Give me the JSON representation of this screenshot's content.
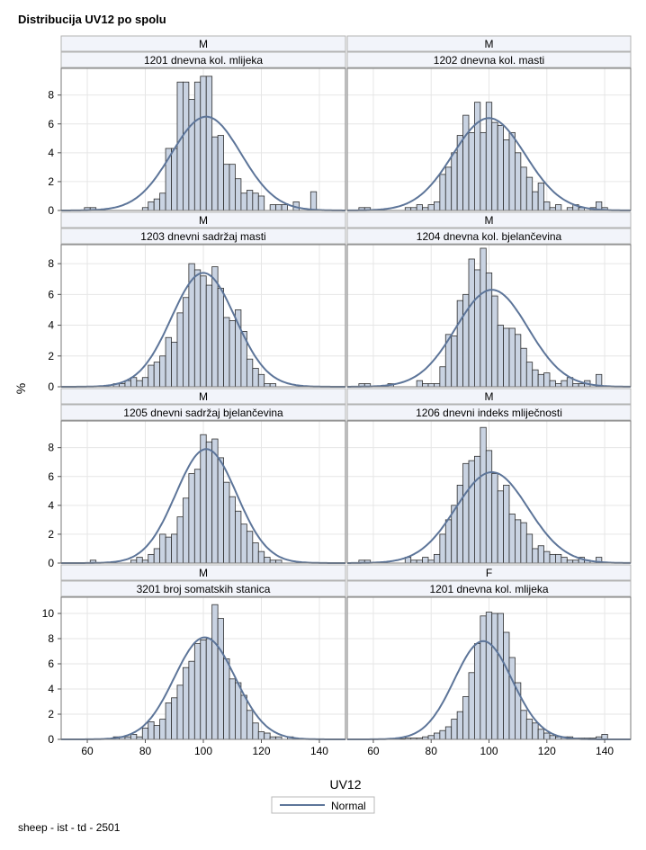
{
  "title": "Distribucija UV12 po spolu",
  "footnote": "sheep - ist - td - 2501",
  "legend_label": "Normal",
  "colors": {
    "bar_fill": "#c9d3e2",
    "bar_stroke": "#2e2e2e",
    "curve": "#5d7599",
    "header_fill": "#f2f4fa",
    "grid": "#e6e6e6"
  },
  "chart_data": {
    "type": "bar",
    "xlabel": "UV12",
    "ylabel": "%",
    "xlim": [
      51,
      149
    ],
    "xticks": [
      60,
      80,
      100,
      120,
      140
    ],
    "bin_start": 56,
    "bin_width": 2,
    "legend": "bottom-center",
    "panels": [
      {
        "sex": "M",
        "trait": "1201 dnevna kol. mlijeka",
        "ylim": [
          0,
          9.6
        ],
        "yticks": [
          0,
          2,
          4,
          6,
          8
        ],
        "mean": 101,
        "sd": 12,
        "curve_peak": 6.5,
        "values": [
          0,
          0,
          0.2,
          0.2,
          0,
          0,
          0,
          0,
          0,
          0,
          0,
          0,
          0.2,
          0.6,
          0.8,
          1.2,
          4.3,
          4.3,
          8.9,
          8.9,
          7.7,
          8.9,
          9.3,
          9.3,
          5.1,
          5.2,
          3.2,
          3.2,
          2.2,
          1.2,
          1.4,
          1.2,
          1.0,
          0,
          0.4,
          0.4,
          0.4,
          0,
          0.6,
          0,
          0,
          1.3
        ]
      },
      {
        "sex": "M",
        "trait": "1202 dnevna kol. masti",
        "ylim": [
          0,
          9.6
        ],
        "yticks": [
          0,
          2,
          4,
          6,
          8
        ],
        "mean": 100,
        "sd": 12.5,
        "curve_peak": 6.4,
        "values": [
          0.2,
          0.2,
          0,
          0,
          0,
          0,
          0,
          0,
          0.2,
          0.2,
          0.4,
          0.2,
          0.4,
          0.6,
          2.5,
          3.0,
          4.0,
          5.2,
          6.6,
          5.4,
          7.5,
          5.4,
          7.5,
          6.1,
          5.9,
          4.9,
          5.4,
          4.0,
          3.0,
          2.3,
          1.3,
          1.9,
          0.6,
          0.2,
          0.4,
          0,
          0.2,
          0.4,
          0.2,
          0,
          0.2,
          0.6,
          0.2
        ]
      },
      {
        "sex": "M",
        "trait": "1203 dnevni sadržaj masti",
        "ylim": [
          0,
          9.0
        ],
        "yticks": [
          0,
          2,
          4,
          6,
          8
        ],
        "mean": 100,
        "sd": 11,
        "curve_peak": 7.4,
        "values": [
          0,
          0,
          0,
          0,
          0,
          0,
          0,
          0.2,
          0.2,
          0.4,
          0.6,
          0.4,
          0.6,
          1.4,
          1.6,
          2.0,
          3.2,
          2.9,
          4.8,
          5.8,
          8.0,
          7.6,
          7.2,
          6.6,
          7.8,
          6.4,
          4.5,
          4.3,
          5.0,
          3.6,
          1.8,
          1.2,
          0.8,
          0.2,
          0.2,
          0,
          0,
          0,
          0,
          0,
          0,
          0,
          0
        ]
      },
      {
        "sex": "M",
        "trait": "1204 dnevna kol. bjelančevina",
        "ylim": [
          0,
          9.0
        ],
        "yticks": [
          0,
          2,
          4,
          6,
          8
        ],
        "mean": 101,
        "sd": 12.5,
        "curve_peak": 6.3,
        "values": [
          0.2,
          0.2,
          0,
          0,
          0,
          0.2,
          0,
          0,
          0,
          0,
          0.4,
          0.2,
          0.2,
          0.2,
          1.3,
          3.4,
          3.3,
          5.6,
          6.0,
          8.3,
          7.6,
          9.0,
          7.4,
          5.9,
          4.0,
          3.8,
          3.8,
          3.4,
          2.5,
          1.6,
          1.1,
          0.8,
          0.9,
          0.4,
          0.2,
          0.4,
          0.6,
          0.2,
          0.2,
          0.4,
          0,
          0.8,
          0
        ]
      },
      {
        "sex": "M",
        "trait": "1205 dnevni sadržaj bjelančevina",
        "ylim": [
          0,
          9.6
        ],
        "yticks": [
          0,
          2,
          4,
          6,
          8
        ],
        "mean": 101,
        "sd": 10.5,
        "curve_peak": 7.9,
        "values": [
          0,
          0,
          0,
          0.2,
          0,
          0,
          0,
          0,
          0,
          0,
          0.2,
          0.4,
          0.2,
          0.6,
          1.0,
          2.0,
          1.8,
          2.0,
          3.2,
          4.5,
          6.2,
          6.5,
          8.9,
          8.4,
          8.6,
          7.3,
          5.6,
          4.6,
          3.6,
          2.7,
          2.2,
          1.4,
          0.8,
          0.4,
          0.2,
          0.2,
          0,
          0,
          0,
          0,
          0,
          0,
          0
        ]
      },
      {
        "sex": "M",
        "trait": "1206 dnevni indeks mliječnosti",
        "ylim": [
          0,
          9.6
        ],
        "yticks": [
          0,
          2,
          4,
          6,
          8
        ],
        "mean": 101,
        "sd": 12.5,
        "curve_peak": 6.3,
        "values": [
          0.2,
          0.2,
          0,
          0,
          0,
          0,
          0,
          0,
          0.4,
          0.2,
          0.2,
          0.4,
          0.2,
          0.6,
          2.0,
          3.0,
          4.0,
          5.4,
          6.9,
          7.1,
          7.4,
          9.4,
          7.8,
          6.2,
          5.0,
          5.4,
          3.4,
          3.0,
          2.8,
          2.0,
          1.0,
          1.2,
          0.8,
          0.6,
          0.6,
          0.4,
          0.2,
          0.2,
          0.4,
          0.2,
          0,
          0.4,
          0
        ]
      },
      {
        "sex": "M",
        "trait": "3201 broj somatskih stanica",
        "ylim": [
          0,
          11.0
        ],
        "yticks": [
          0,
          2,
          4,
          6,
          8,
          10
        ],
        "mean": 100.5,
        "sd": 10.5,
        "curve_peak": 8.1,
        "values": [
          0,
          0,
          0,
          0,
          0,
          0,
          0,
          0.2,
          0.2,
          0.2,
          0.4,
          0.2,
          0.9,
          1.4,
          1.1,
          1.6,
          2.9,
          3.3,
          4.3,
          5.7,
          6.2,
          7.6,
          7.9,
          8.0,
          10.7,
          9.6,
          6.4,
          4.8,
          4.5,
          3.5,
          2.3,
          1.3,
          0.6,
          0.5,
          0.2,
          0.2,
          0,
          0.2,
          0,
          0,
          0,
          0,
          0
        ]
      },
      {
        "sex": "F",
        "trait": "1201 dnevna kol. mlijeka",
        "ylim": [
          0,
          11.0
        ],
        "yticks": [
          0,
          2,
          4,
          6,
          8,
          10
        ],
        "mean": 98,
        "sd": 10,
        "curve_peak": 7.8,
        "values": [
          0,
          0,
          0,
          0,
          0,
          0,
          0,
          0.05,
          0.1,
          0.1,
          0.1,
          0.2,
          0.3,
          0.5,
          0.7,
          1.0,
          1.6,
          2.2,
          3.4,
          5.3,
          7.6,
          9.8,
          10.1,
          10.0,
          10.0,
          8.5,
          6.5,
          4.5,
          2.3,
          1.6,
          1.3,
          0.8,
          0.5,
          0.3,
          0.2,
          0.2,
          0.2,
          0.1,
          0.1,
          0.1,
          0.1,
          0.2,
          0.4
        ]
      }
    ]
  }
}
